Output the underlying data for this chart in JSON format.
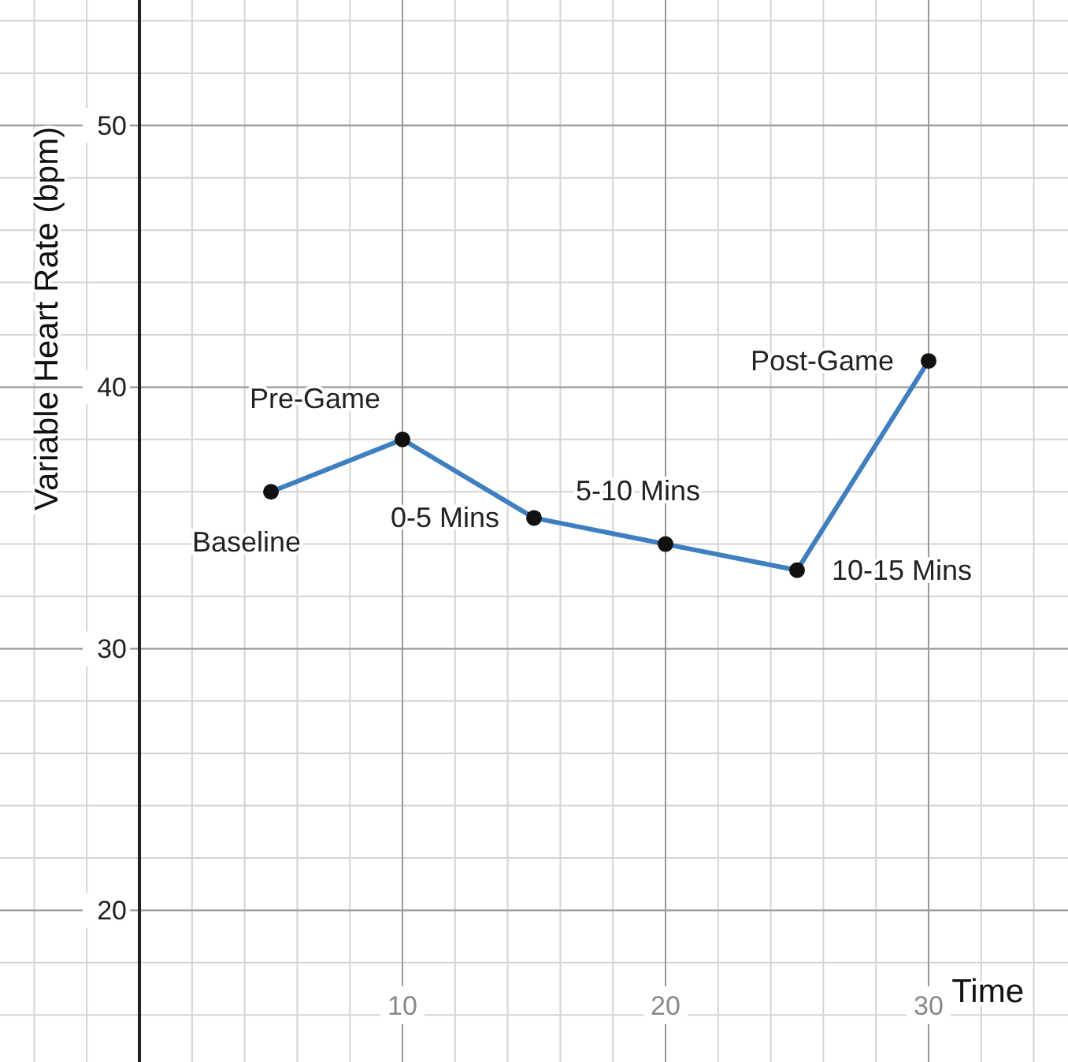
{
  "chart_data": {
    "type": "line",
    "xlabel": "Time",
    "ylabel": "Variable Heart Rate (bpm)",
    "x": [
      5,
      10,
      15,
      20,
      25,
      30
    ],
    "series": [
      {
        "color": "#3f7fbf",
        "values": [
          36,
          38,
          35,
          34,
          33,
          41
        ]
      }
    ],
    "xlim": [
      -5.3,
      35.3
    ],
    "ylim": [
      14.2,
      54.8
    ],
    "xticks": [
      10,
      20,
      30
    ],
    "yticks": [
      20,
      30,
      40,
      50
    ],
    "grid": true,
    "marker": "circle",
    "line_style": "solid",
    "annotations": [
      {
        "text": "Baseline",
        "x": 5,
        "y": 36
      },
      {
        "text": "Pre-Game",
        "x": 10,
        "y": 38
      },
      {
        "text": "0-5 Mins",
        "x": 15,
        "y": 35
      },
      {
        "text": "5-10 Mins",
        "x": 20,
        "y": 34
      },
      {
        "text": "10-15 Mins",
        "x": 25,
        "y": 33
      },
      {
        "text": "Post-Game",
        "x": 30,
        "y": 41
      }
    ]
  }
}
